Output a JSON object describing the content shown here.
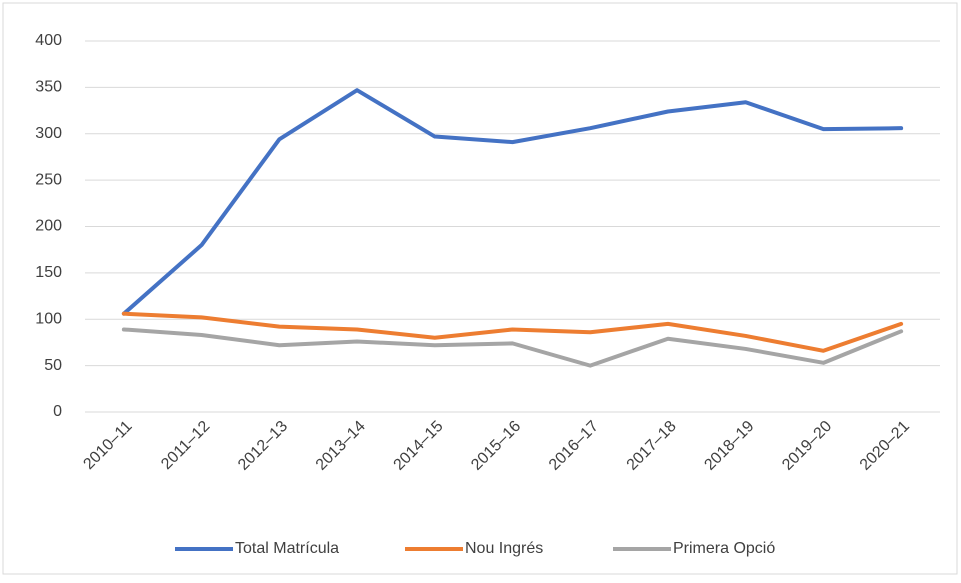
{
  "chart_data": {
    "type": "line",
    "categories": [
      "2010–11",
      "2011–12",
      "2012–13",
      "2013–14",
      "2014–15",
      "2015–16",
      "2016–17",
      "2017–18",
      "2018–19",
      "2019–20",
      "2020–21"
    ],
    "series": [
      {
        "name": "Total Matrícula",
        "color": "#4472c4",
        "values": [
          106,
          180,
          294,
          347,
          297,
          291,
          306,
          324,
          334,
          305,
          306
        ]
      },
      {
        "name": "Nou Ingrés",
        "color": "#ed7d31",
        "values": [
          106,
          102,
          92,
          89,
          80,
          89,
          86,
          95,
          82,
          66,
          95
        ]
      },
      {
        "name": "Primera Opció",
        "color": "#a5a5a5",
        "values": [
          89,
          83,
          72,
          76,
          72,
          74,
          50,
          79,
          68,
          53,
          87
        ]
      }
    ],
    "ylim": [
      0,
      400
    ],
    "yticks": [
      0,
      50,
      100,
      150,
      200,
      250,
      300,
      350,
      400
    ],
    "grid": true,
    "legend": "bottom"
  }
}
